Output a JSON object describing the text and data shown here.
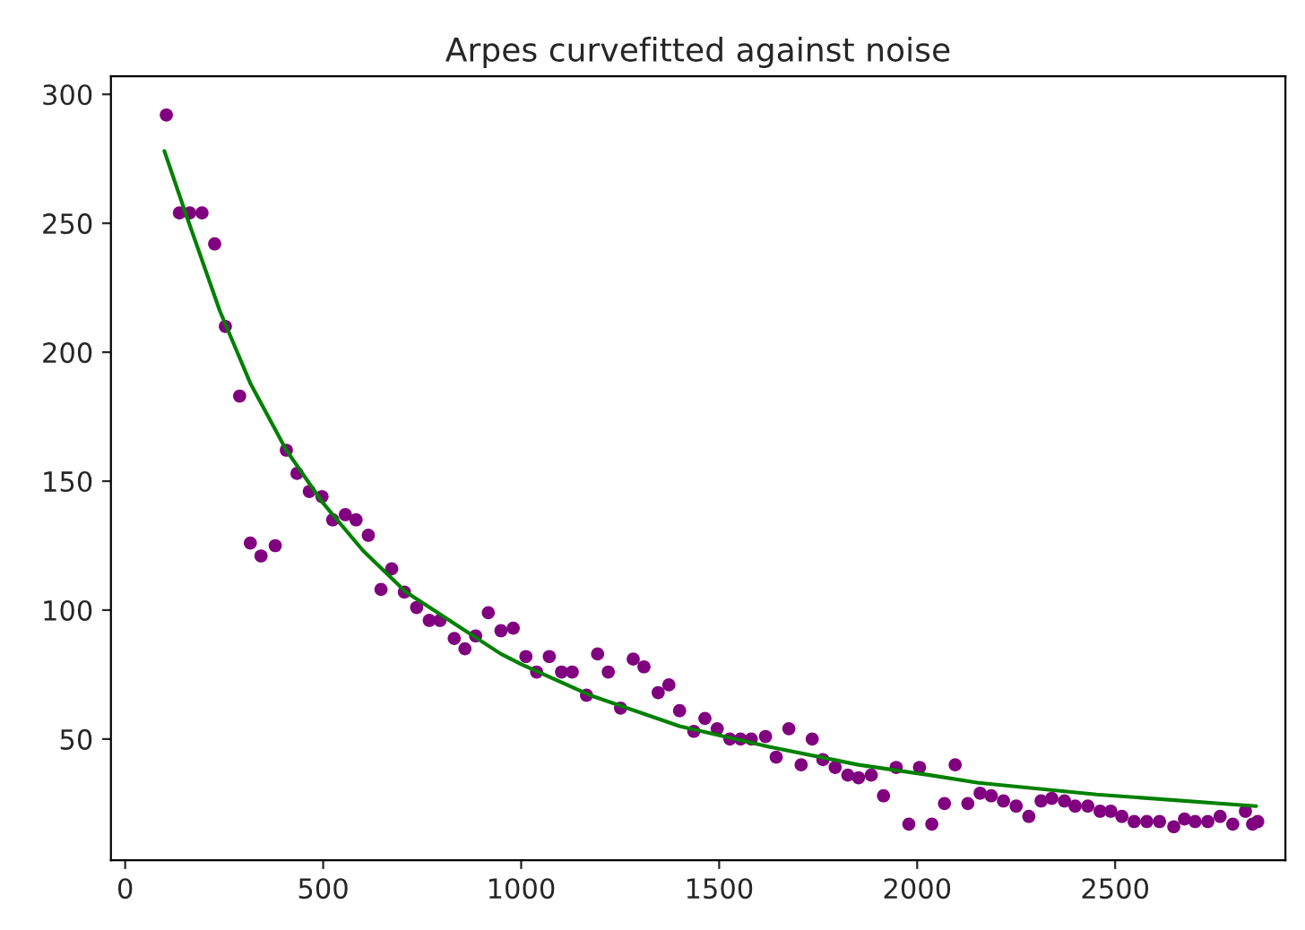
{
  "chart_data": {
    "type": "scatter",
    "title": "Arpes curvefitted against noise",
    "xlim": [
      -36,
      2930
    ],
    "ylim": [
      3,
      307
    ],
    "xticks": [
      0,
      500,
      1000,
      1500,
      2000,
      2500
    ],
    "yticks": [
      50,
      100,
      150,
      200,
      250,
      300
    ],
    "grid": false,
    "legend": false,
    "marker": "circle",
    "series": [
      {
        "color": "#800080",
        "x": [
          104,
          137,
          163,
          194,
          226,
          253,
          289,
          316,
          343,
          379,
          407,
          434,
          465,
          497,
          524,
          556,
          583,
          614,
          646,
          673,
          705,
          736,
          768,
          795,
          831,
          858,
          885,
          917,
          949,
          980,
          1012,
          1039,
          1071,
          1102,
          1129,
          1165,
          1193,
          1220,
          1251,
          1283,
          1310,
          1346,
          1373,
          1400,
          1436,
          1464,
          1495,
          1527,
          1554,
          1581,
          1617,
          1644,
          1676,
          1707,
          1735,
          1762,
          1793,
          1825,
          1852,
          1884,
          1915,
          1947,
          1979,
          2006,
          2037,
          2069,
          2096,
          2128,
          2159,
          2187,
          2218,
          2250,
          2282,
          2313,
          2340,
          2372,
          2399,
          2431,
          2462,
          2489,
          2517,
          2548,
          2580,
          2612,
          2648,
          2675,
          2702,
          2734,
          2765,
          2797,
          2829,
          2847,
          2860
        ],
        "values": [
          292,
          254,
          254,
          254,
          242,
          210,
          183,
          126,
          121,
          125,
          162,
          153,
          146,
          144,
          135,
          137,
          135,
          129,
          108,
          116,
          107,
          101,
          96,
          96,
          89,
          85,
          90,
          99,
          92,
          93,
          82,
          76,
          82,
          76,
          76,
          67,
          83,
          76,
          62,
          81,
          78,
          68,
          71,
          61,
          53,
          58,
          54,
          50,
          50,
          50,
          51,
          43,
          54,
          40,
          50,
          42,
          39,
          36,
          35,
          36,
          28,
          39,
          17,
          39,
          17,
          25,
          40,
          25,
          29,
          28,
          26,
          24,
          20,
          26,
          27,
          26,
          24,
          24,
          22,
          22,
          20,
          18,
          18,
          18,
          16,
          19,
          18,
          18,
          20,
          17,
          22,
          17,
          18
        ]
      },
      {
        "type": "line",
        "color": "#008000",
        "line_style": "solid",
        "marker": "none",
        "x": [
          99,
          150,
          239,
          316,
          407,
          497,
          601,
          709,
          949,
          1000,
          1174,
          1400,
          1626,
          1852,
          2032,
          2155,
          2453,
          2856
        ],
        "values": [
          278,
          255,
          216,
          188,
          162,
          142,
          123,
          107,
          83,
          79,
          67,
          55,
          47,
          40,
          36,
          33,
          28.5,
          24
        ]
      }
    ]
  }
}
